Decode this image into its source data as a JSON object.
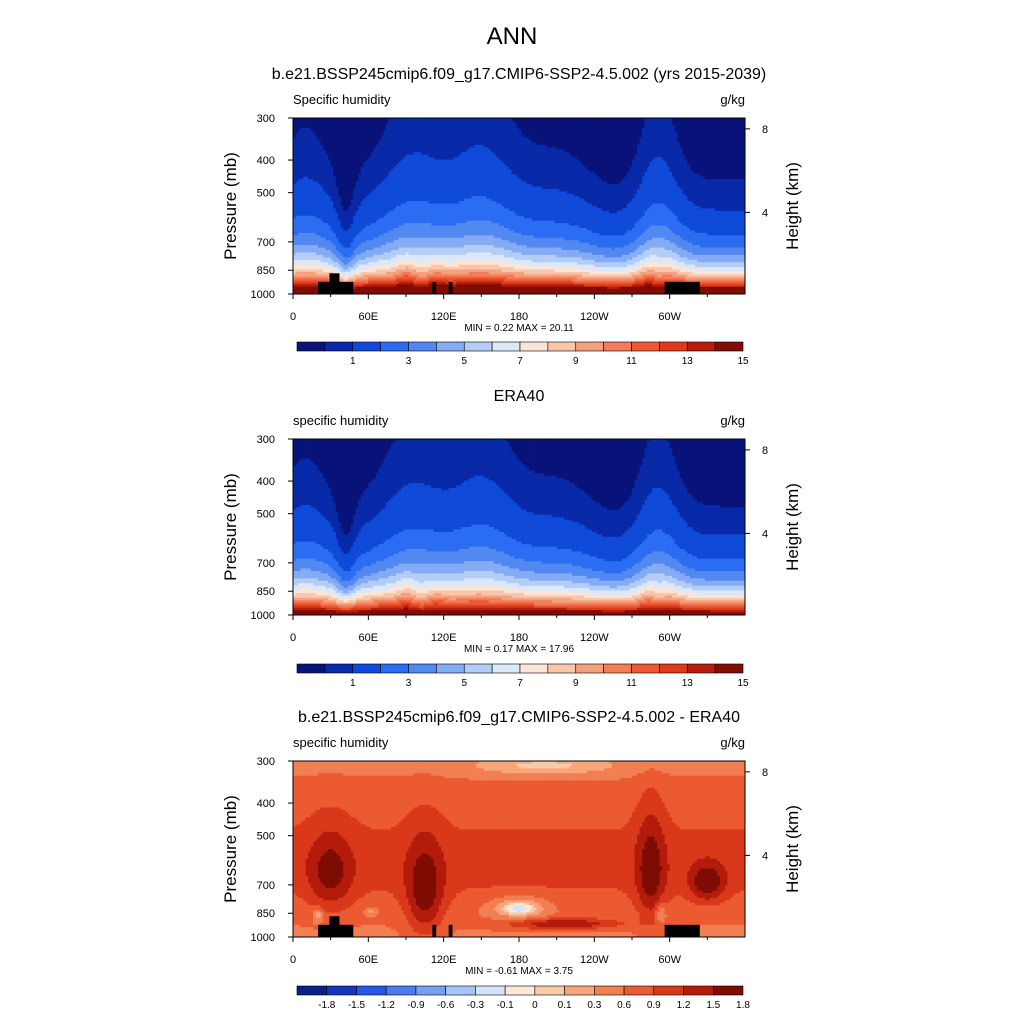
{
  "main_title": "ANN",
  "colors": {
    "seq_palette": [
      "#08137a",
      "#0829a8",
      "#0f4ad8",
      "#2b6cf2",
      "#5289f1",
      "#84abf4",
      "#b4cdf7",
      "#dae8fa",
      "#fbe5d6",
      "#f9c6ac",
      "#f6a17e",
      "#f27d58",
      "#ec5a34",
      "#de3a1c",
      "#b61d0c",
      "#810d02"
    ],
    "diff_palette": [
      "#0a1f8a",
      "#1335bf",
      "#2457e6",
      "#4a7ced",
      "#74a0f0",
      "#a6c4f5",
      "#d3e3f8",
      "#fbe8d8",
      "#f9caa9",
      "#f6a67a",
      "#f17f52",
      "#eb5a31",
      "#da381b",
      "#b31b0b",
      "#7e0c02"
    ],
    "land": "#000000"
  },
  "chart_data": [
    {
      "type": "heatmap",
      "name": "panel-model",
      "title": "b.e21.BSSP245cmip6.f09_g17.CMIP6-SSP2-4.5.002 (yrs 2015-2039)",
      "left_label": "Specific humidity",
      "units": "g/kg",
      "ylabel": "Pressure (mb)",
      "y2label": "Height (km)",
      "yticks": [
        300,
        400,
        500,
        700,
        850,
        1000
      ],
      "y2ticks": [
        8,
        4
      ],
      "xticks": [
        "0",
        "60E",
        "120E",
        "180",
        "120W",
        "60W"
      ],
      "xtick_lon": [
        0,
        60,
        120,
        180,
        240,
        300
      ],
      "stats": "MIN =   0.22  MAX =  20.11",
      "min": 0.22,
      "max": 20.11,
      "levels": [
        0.5,
        1,
        2,
        3,
        4,
        5,
        6,
        7,
        8,
        9,
        10,
        11,
        12,
        13,
        14,
        15
      ],
      "colorbar_labels": [
        "1",
        "3",
        "5",
        "7",
        "9",
        "11",
        "13",
        "15"
      ],
      "kind": "seq"
    },
    {
      "type": "heatmap",
      "name": "panel-obs",
      "title": "ERA40",
      "left_label": "specific humidity",
      "units": "g/kg",
      "ylabel": "Pressure (mb)",
      "y2label": "Height (km)",
      "yticks": [
        300,
        400,
        500,
        700,
        850,
        1000
      ],
      "y2ticks": [
        8,
        4
      ],
      "xticks": [
        "0",
        "60E",
        "120E",
        "180",
        "120W",
        "60W"
      ],
      "xtick_lon": [
        0,
        60,
        120,
        180,
        240,
        300
      ],
      "stats": "MIN =   0.17  MAX =  17.96",
      "min": 0.17,
      "max": 17.96,
      "levels": [
        0.5,
        1,
        2,
        3,
        4,
        5,
        6,
        7,
        8,
        9,
        10,
        11,
        12,
        13,
        14,
        15
      ],
      "colorbar_labels": [
        "1",
        "3",
        "5",
        "7",
        "9",
        "11",
        "13",
        "15"
      ],
      "kind": "seq"
    },
    {
      "type": "heatmap",
      "name": "panel-diff",
      "title": "b.e21.BSSP245cmip6.f09_g17.CMIP6-SSP2-4.5.002 - ERA40",
      "left_label": "specific humidity",
      "units": "g/kg",
      "ylabel": "Pressure (mb)",
      "y2label": "Height (km)",
      "yticks": [
        300,
        400,
        500,
        700,
        850,
        1000
      ],
      "y2ticks": [
        8,
        4
      ],
      "xticks": [
        "0",
        "60E",
        "120E",
        "180",
        "120W",
        "60W"
      ],
      "xtick_lon": [
        0,
        60,
        120,
        180,
        240,
        300
      ],
      "stats": "MIN =  -0.61  MAX =   3.75",
      "min": -0.61,
      "max": 3.75,
      "levels": [
        -1.8,
        -1.5,
        -1.2,
        -0.9,
        -0.6,
        -0.3,
        -0.1,
        0,
        0.1,
        0.3,
        0.6,
        0.9,
        1.2,
        1.5,
        1.8
      ],
      "colorbar_labels": [
        "-1.8",
        "-1.5",
        "-1.2",
        "-0.9",
        "-0.6",
        "-0.3",
        "-0.1",
        "0",
        "0.1",
        "0.3",
        "0.6",
        "0.9",
        "1.2",
        "1.5",
        "1.8"
      ],
      "kind": "diff"
    }
  ]
}
